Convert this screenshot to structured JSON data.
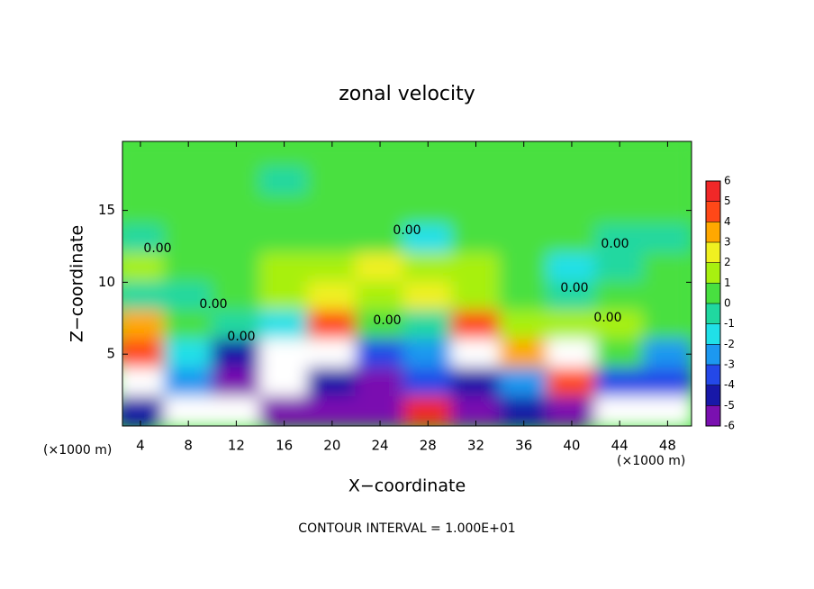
{
  "chart_data": {
    "type": "heatmap",
    "title": "zonal velocity",
    "x_label": "X−coordinate",
    "y_label": "Z−coordinate",
    "x_unit": "(×1000 m)",
    "footer": "CONTOUR INTERVAL = 1.000E+01",
    "contour_labels": [
      "0.00",
      "0.00",
      "0.00",
      "0.00",
      "0.00",
      "0.00",
      "0.00",
      "0.00"
    ],
    "xlim": [
      2.5,
      50
    ],
    "ylim": [
      0,
      19.8
    ],
    "xticks": [
      4,
      8,
      12,
      16,
      20,
      24,
      28,
      32,
      36,
      40,
      44,
      48
    ],
    "yticks": [
      5,
      10,
      15
    ],
    "x": [
      4,
      8,
      12,
      16,
      20,
      24,
      28,
      32,
      36,
      40,
      44,
      48
    ],
    "y": [
      19,
      17,
      15,
      13,
      11,
      9,
      7,
      5,
      3,
      1
    ],
    "z": [
      [
        0.3,
        0.5,
        0.4,
        0.2,
        0.5,
        0.6,
        0.8,
        0.8,
        0.7,
        0.6,
        0.5,
        0.4
      ],
      [
        0.2,
        0.3,
        0.1,
        -0.2,
        0.4,
        0.6,
        0.9,
        0.8,
        0.7,
        0.6,
        0.4,
        0.3
      ],
      [
        0.4,
        0.5,
        0.3,
        0.2,
        0.5,
        0.7,
        0.6,
        0.8,
        0.9,
        0.7,
        0.5,
        0.3
      ],
      [
        0,
        0.3,
        0.5,
        0.6,
        0.4,
        0.5,
        -1.5,
        0.5,
        0.6,
        0.4,
        -0.5,
        -0.3
      ],
      [
        1.5,
        0.8,
        1,
        1.5,
        1.5,
        2.5,
        2,
        1.5,
        0.5,
        -1,
        0,
        0.3
      ],
      [
        -0.8,
        -0.5,
        0.5,
        2,
        3,
        1.5,
        3,
        2,
        1,
        -0.8,
        0.5,
        0.7
      ],
      [
        4,
        1,
        -0.5,
        -1,
        5,
        0.5,
        -0.5,
        5,
        2,
        1.5,
        2,
        0.5
      ],
      [
        5,
        -1,
        -4,
        7,
        8,
        -3,
        -2,
        8,
        4,
        7,
        1,
        -2
      ],
      [
        7,
        -2,
        -5,
        8,
        -4,
        -5,
        -3,
        -4,
        -2,
        5,
        -3,
        -3
      ],
      [
        -4,
        8,
        7,
        -5,
        -5,
        -6,
        6,
        -5,
        -4,
        -6,
        8,
        7
      ]
    ],
    "colorbar_ticks": [
      -6,
      -5,
      -4,
      -3,
      -2,
      -1,
      0,
      1,
      2,
      3,
      4,
      5,
      6
    ],
    "colors": [
      "#7a10b0",
      "#1818a8",
      "#2448e8",
      "#1c98f0",
      "#20e0e8",
      "#20d8a0",
      "#48e040",
      "#a8f010",
      "#f0f020",
      "#ffa800",
      "#ff4818",
      "#f02828"
    ],
    "over_color": "#ffffff",
    "under_color": "#ffffff"
  }
}
